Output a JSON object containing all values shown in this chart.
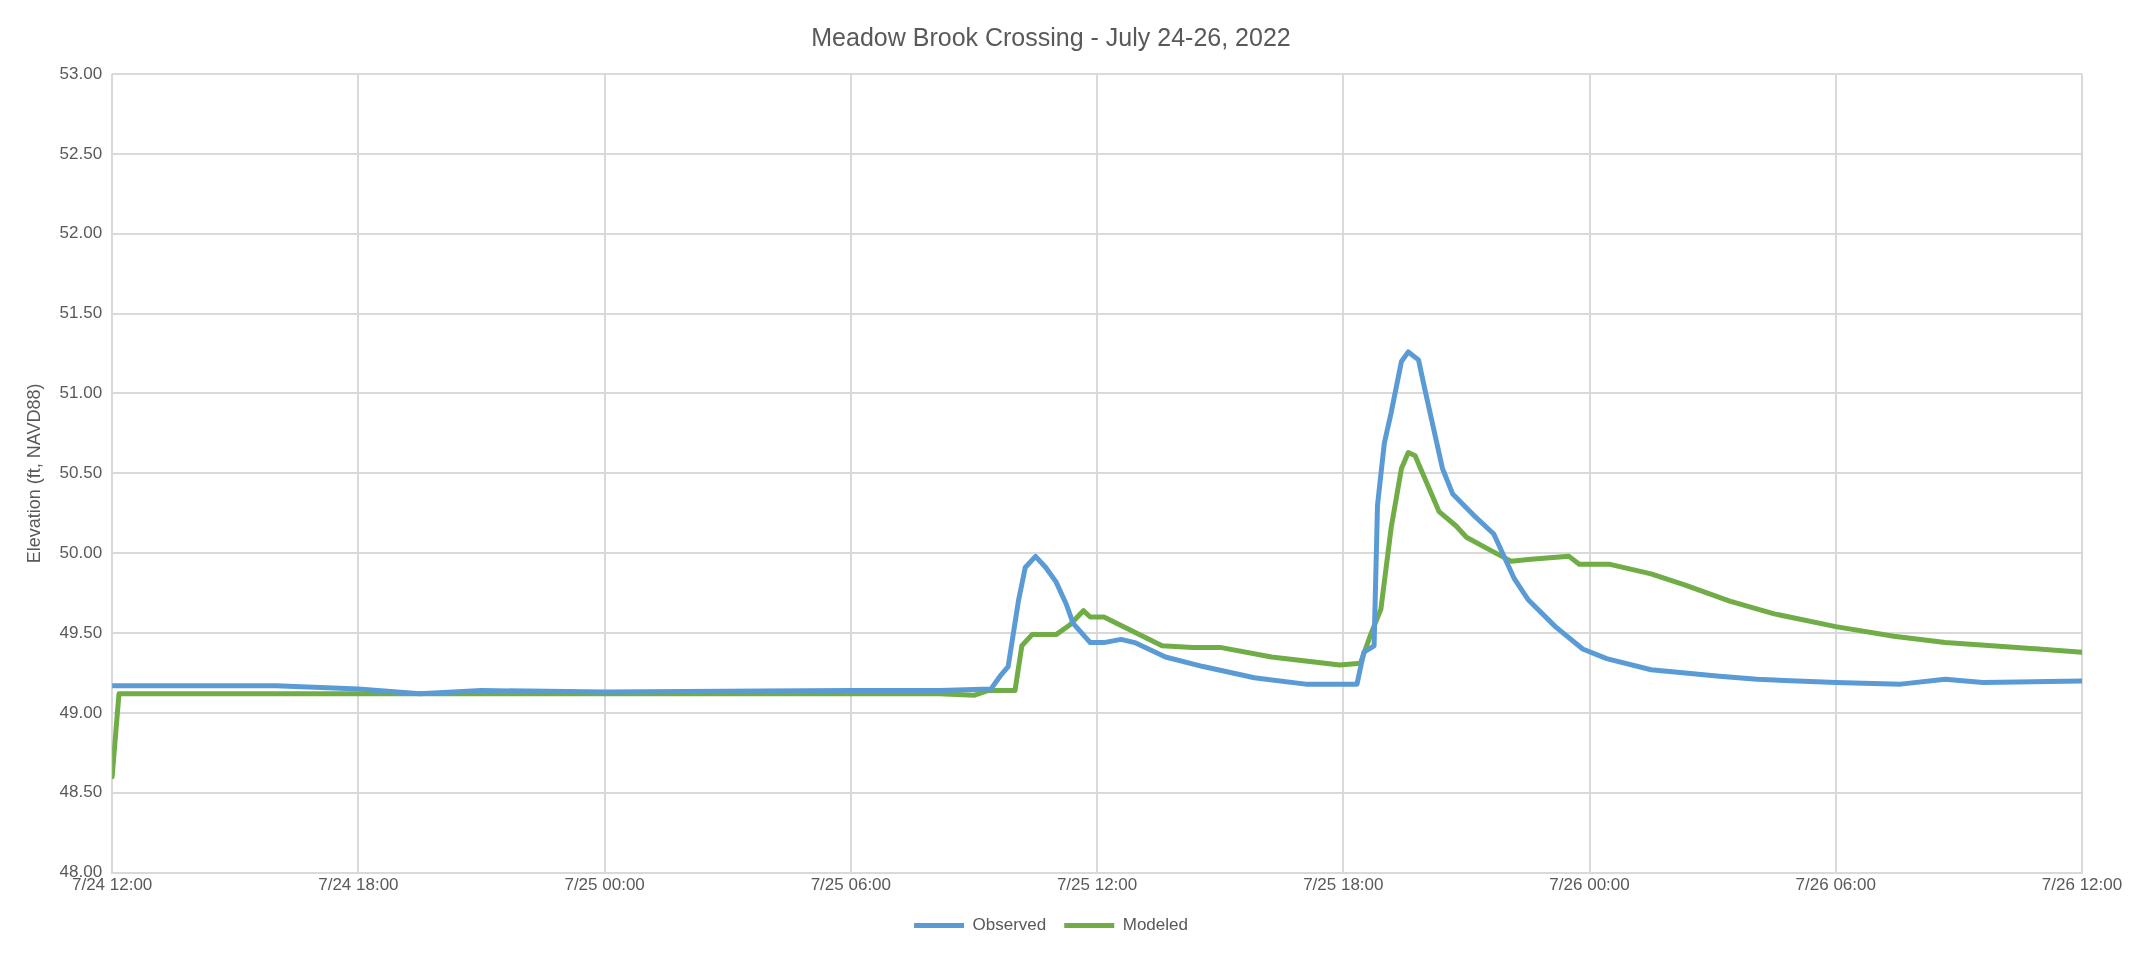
{
  "chart_data": {
    "type": "line",
    "title": "Meadow Brook Crossing - July 24-26, 2022",
    "ylabel": "Elevation (ft, NAVD88)",
    "xlim": [
      "2022-07-24T12:00",
      "2022-07-26T12:00"
    ],
    "xticks": [
      {
        "value": "2022-07-24T12:00",
        "label": "7/24 12:00"
      },
      {
        "value": "2022-07-24T18:00",
        "label": "7/24 18:00"
      },
      {
        "value": "2022-07-25T00:00",
        "label": "7/25 00:00"
      },
      {
        "value": "2022-07-25T06:00",
        "label": "7/25 06:00"
      },
      {
        "value": "2022-07-25T12:00",
        "label": "7/25 12:00"
      },
      {
        "value": "2022-07-25T18:00",
        "label": "7/25 18:00"
      },
      {
        "value": "2022-07-26T00:00",
        "label": "7/26 00:00"
      },
      {
        "value": "2022-07-26T06:00",
        "label": "7/26 06:00"
      },
      {
        "value": "2022-07-26T12:00",
        "label": "7/26 12:00"
      }
    ],
    "ylim": [
      48,
      53
    ],
    "yticks": [
      {
        "value": 48,
        "label": "48.00"
      },
      {
        "value": 48.5,
        "label": "48.50"
      },
      {
        "value": 49,
        "label": "49.00"
      },
      {
        "value": 49.5,
        "label": "49.50"
      },
      {
        "value": 50,
        "label": "50.00"
      },
      {
        "value": 50.5,
        "label": "50.50"
      },
      {
        "value": 51,
        "label": "51.00"
      },
      {
        "value": 51.5,
        "label": "51.50"
      },
      {
        "value": 52,
        "label": "52.00"
      },
      {
        "value": 52.5,
        "label": "52.50"
      },
      {
        "value": 53,
        "label": "53.00"
      }
    ],
    "grid": true,
    "legend": "bottom",
    "series": [
      {
        "name": "Observed",
        "color": "#5b9bd5",
        "x": [
          "2022-07-24T12:00",
          "2022-07-24T16:00",
          "2022-07-24T18:00",
          "2022-07-24T19:30",
          "2022-07-24T21:00",
          "2022-07-25T00:00",
          "2022-07-25T06:00",
          "2022-07-25T08:10",
          "2022-07-25T09:25",
          "2022-07-25T09:40",
          "2022-07-25T09:50",
          "2022-07-25T10:05",
          "2022-07-25T10:15",
          "2022-07-25T10:30",
          "2022-07-25T10:45",
          "2022-07-25T11:00",
          "2022-07-25T11:15",
          "2022-07-25T11:25",
          "2022-07-25T11:50",
          "2022-07-25T12:10",
          "2022-07-25T12:35",
          "2022-07-25T12:55",
          "2022-07-25T13:40",
          "2022-07-25T14:35",
          "2022-07-25T15:50",
          "2022-07-25T17:05",
          "2022-07-25T18:20",
          "2022-07-25T18:30",
          "2022-07-25T18:45",
          "2022-07-25T18:50",
          "2022-07-25T19:00",
          "2022-07-25T19:10",
          "2022-07-25T19:25",
          "2022-07-25T19:35",
          "2022-07-25T19:50",
          "2022-07-25T20:00",
          "2022-07-25T20:25",
          "2022-07-25T20:40",
          "2022-07-25T21:10",
          "2022-07-25T21:40",
          "2022-07-25T22:10",
          "2022-07-25T22:30",
          "2022-07-25T23:10",
          "2022-07-25T23:50",
          "2022-07-26T00:25",
          "2022-07-26T01:30",
          "2022-07-26T03:10",
          "2022-07-26T04:05",
          "2022-07-26T06:00",
          "2022-07-26T07:35",
          "2022-07-26T08:40",
          "2022-07-26T09:35",
          "2022-07-26T12:00"
        ],
        "values": [
          49.17,
          49.17,
          49.15,
          49.12,
          49.14,
          49.13,
          49.14,
          49.14,
          49.15,
          49.24,
          49.29,
          49.7,
          49.91,
          49.98,
          49.91,
          49.82,
          49.68,
          49.56,
          49.44,
          49.44,
          49.46,
          49.44,
          49.35,
          49.29,
          49.22,
          49.18,
          49.18,
          49.38,
          49.42,
          50.3,
          50.69,
          50.88,
          51.2,
          51.26,
          51.21,
          51.01,
          50.53,
          50.37,
          50.24,
          50.12,
          49.84,
          49.71,
          49.54,
          49.4,
          49.34,
          49.27,
          49.23,
          49.21,
          49.19,
          49.18,
          49.21,
          49.19,
          49.2
        ]
      },
      {
        "name": "Modeled",
        "color": "#70ad47",
        "x": [
          "2022-07-24T12:00",
          "2022-07-24T12:10",
          "2022-07-25T08:10",
          "2022-07-25T09:00",
          "2022-07-25T09:20",
          "2022-07-25T10:00",
          "2022-07-25T10:10",
          "2022-07-25T10:25",
          "2022-07-25T11:00",
          "2022-07-25T11:20",
          "2022-07-25T11:40",
          "2022-07-25T11:50",
          "2022-07-25T12:10",
          "2022-07-25T13:35",
          "2022-07-25T14:20",
          "2022-07-25T15:00",
          "2022-07-25T16:15",
          "2022-07-25T17:55",
          "2022-07-25T18:25",
          "2022-07-25T18:40",
          "2022-07-25T18:55",
          "2022-07-25T19:10",
          "2022-07-25T19:25",
          "2022-07-25T19:35",
          "2022-07-25T19:45",
          "2022-07-25T20:00",
          "2022-07-25T20:20",
          "2022-07-25T20:45",
          "2022-07-25T21:00",
          "2022-07-25T21:30",
          "2022-07-25T22:05",
          "2022-07-25T22:30",
          "2022-07-25T23:30",
          "2022-07-25T23:45",
          "2022-07-26T00:30",
          "2022-07-26T01:30",
          "2022-07-26T02:20",
          "2022-07-26T03:25",
          "2022-07-26T04:30",
          "2022-07-26T06:00",
          "2022-07-26T07:25",
          "2022-07-26T08:40",
          "2022-07-26T10:25",
          "2022-07-26T12:00"
        ],
        "values": [
          48.6,
          49.12,
          49.12,
          49.11,
          49.14,
          49.14,
          49.42,
          49.49,
          49.49,
          49.55,
          49.64,
          49.6,
          49.6,
          49.42,
          49.41,
          49.41,
          49.35,
          49.3,
          49.31,
          49.49,
          49.65,
          50.16,
          50.53,
          50.63,
          50.61,
          50.46,
          50.26,
          50.17,
          50.1,
          50.03,
          49.95,
          49.96,
          49.98,
          49.93,
          49.93,
          49.87,
          49.8,
          49.7,
          49.62,
          49.54,
          49.48,
          49.44,
          49.41,
          49.38
        ]
      }
    ]
  }
}
